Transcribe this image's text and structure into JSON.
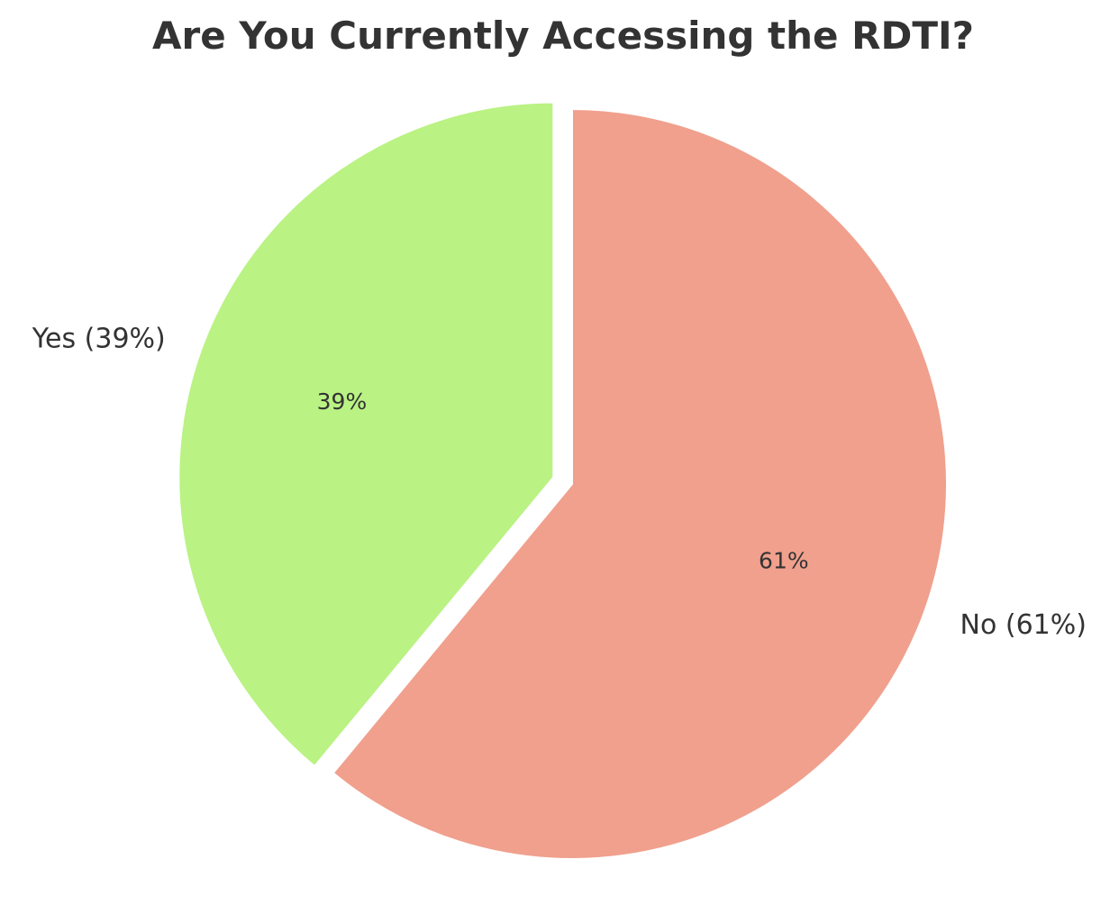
{
  "chart_data": {
    "type": "pie",
    "title": "Are You Currently Accessing the RDTI?",
    "slices": [
      {
        "label": "No (61%)",
        "pct_label": "61%",
        "value": 61,
        "color": "#f0a08d"
      },
      {
        "label": "Yes (39%)",
        "pct_label": "39%",
        "value": 39,
        "color": "#baf284"
      }
    ],
    "legend": "none",
    "start_angle": "12 o'clock",
    "direction": "clockwise",
    "exploded": true
  }
}
